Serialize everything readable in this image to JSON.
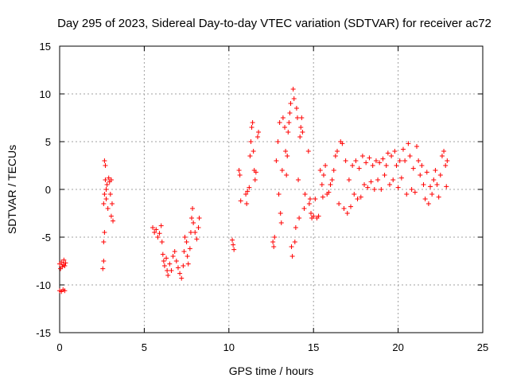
{
  "chart_data": {
    "type": "scatter",
    "title": "Day 295 of 2023, Sidereal Day-to-day VTEC variation (SDTVAR) for receiver ac72",
    "xlabel": "GPS time / hours",
    "ylabel": "SDTVAR / TECUs",
    "xlim": [
      0,
      25
    ],
    "ylim": [
      -15,
      15
    ],
    "x_ticks": [
      0,
      5,
      10,
      15,
      20,
      25
    ],
    "x_tick_labels": [
      "0",
      "5",
      "10",
      "15",
      "20",
      "25"
    ],
    "y_ticks": [
      -15,
      -10,
      -5,
      0,
      5,
      10,
      15
    ],
    "y_tick_labels": [
      "-15",
      "-10",
      "-5",
      "0",
      "5",
      "10",
      "15"
    ],
    "grid": true,
    "marker": "+",
    "series": [
      {
        "name": "ac72",
        "color": "#ff0000",
        "points": [
          [
            0.0,
            -7.8
          ],
          [
            0.05,
            -8.3
          ],
          [
            0.1,
            -7.6
          ],
          [
            0.15,
            -8.1
          ],
          [
            0.2,
            -7.9
          ],
          [
            0.25,
            -7.4
          ],
          [
            0.3,
            -8.0
          ],
          [
            0.35,
            -7.7
          ],
          [
            0.0,
            -10.6
          ],
          [
            0.1,
            -10.7
          ],
          [
            0.2,
            -10.5
          ],
          [
            0.3,
            -10.6
          ],
          [
            2.55,
            -8.3
          ],
          [
            2.6,
            -7.5
          ],
          [
            2.6,
            -5.5
          ],
          [
            2.65,
            -4.5
          ],
          [
            2.6,
            -1.5
          ],
          [
            2.65,
            -0.5
          ],
          [
            2.7,
            1.0
          ],
          [
            2.65,
            3.0
          ],
          [
            2.7,
            2.5
          ],
          [
            2.75,
            -1.0
          ],
          [
            2.8,
            0.5
          ],
          [
            2.85,
            -2.0
          ],
          [
            2.9,
            1.2
          ],
          [
            2.95,
            0.8
          ],
          [
            3.0,
            -0.5
          ],
          [
            3.05,
            1.0
          ],
          [
            3.1,
            -1.5
          ],
          [
            3.15,
            -3.3
          ],
          [
            3.05,
            -2.8
          ],
          [
            2.75,
            0.0
          ],
          [
            5.5,
            -4.0
          ],
          [
            5.6,
            -4.5
          ],
          [
            5.7,
            -4.2
          ],
          [
            5.8,
            -5.0
          ],
          [
            5.9,
            -4.6
          ],
          [
            6.0,
            -3.8
          ],
          [
            6.05,
            -5.5
          ],
          [
            6.1,
            -6.8
          ],
          [
            6.15,
            -7.5
          ],
          [
            6.2,
            -8.0
          ],
          [
            6.3,
            -7.2
          ],
          [
            6.35,
            -8.5
          ],
          [
            6.4,
            -9.0
          ],
          [
            6.5,
            -7.8
          ],
          [
            6.6,
            -8.5
          ],
          [
            6.7,
            -7.0
          ],
          [
            6.8,
            -6.5
          ],
          [
            6.9,
            -7.5
          ],
          [
            7.0,
            -8.2
          ],
          [
            7.1,
            -8.8
          ],
          [
            7.2,
            -9.3
          ],
          [
            7.3,
            -8.0
          ],
          [
            7.35,
            -6.5
          ],
          [
            7.4,
            -5.0
          ],
          [
            7.5,
            -5.5
          ],
          [
            7.55,
            -7.0
          ],
          [
            7.6,
            -7.8
          ],
          [
            7.7,
            -6.2
          ],
          [
            7.75,
            -4.5
          ],
          [
            7.8,
            -3.0
          ],
          [
            7.85,
            -2.0
          ],
          [
            7.9,
            -3.5
          ],
          [
            8.0,
            -4.5
          ],
          [
            8.1,
            -5.2
          ],
          [
            8.2,
            -4.0
          ],
          [
            8.25,
            -3.0
          ],
          [
            10.2,
            -5.3
          ],
          [
            10.25,
            -5.8
          ],
          [
            10.3,
            -6.3
          ],
          [
            10.6,
            2.0
          ],
          [
            10.65,
            1.5
          ],
          [
            10.7,
            -1.2
          ],
          [
            11.0,
            -0.5
          ],
          [
            11.05,
            -1.5
          ],
          [
            11.1,
            -0.2
          ],
          [
            11.2,
            0.2
          ],
          [
            11.25,
            3.5
          ],
          [
            11.3,
            5.0
          ],
          [
            11.35,
            6.5
          ],
          [
            11.4,
            7.0
          ],
          [
            11.45,
            4.0
          ],
          [
            11.5,
            2.0
          ],
          [
            11.55,
            1.0
          ],
          [
            11.6,
            1.8
          ],
          [
            11.7,
            5.5
          ],
          [
            11.75,
            6.0
          ],
          [
            12.6,
            -5.5
          ],
          [
            12.65,
            -6.0
          ],
          [
            12.7,
            -5.0
          ],
          [
            12.8,
            3.0
          ],
          [
            12.9,
            5.0
          ],
          [
            12.95,
            -0.5
          ],
          [
            13.0,
            7.0
          ],
          [
            13.05,
            -2.5
          ],
          [
            13.1,
            -3.5
          ],
          [
            13.15,
            2.0
          ],
          [
            13.2,
            7.5
          ],
          [
            13.3,
            6.5
          ],
          [
            13.35,
            4.0
          ],
          [
            13.4,
            1.5
          ],
          [
            13.45,
            3.5
          ],
          [
            13.5,
            6.0
          ],
          [
            13.55,
            7.0
          ],
          [
            13.6,
            8.0
          ],
          [
            13.65,
            9.0
          ],
          [
            13.7,
            -6.0
          ],
          [
            13.75,
            -7.0
          ],
          [
            13.8,
            10.5
          ],
          [
            13.85,
            9.5
          ],
          [
            13.9,
            -5.5
          ],
          [
            13.95,
            -4.0
          ],
          [
            14.0,
            8.5
          ],
          [
            14.05,
            7.5
          ],
          [
            14.1,
            1.0
          ],
          [
            14.15,
            -3.0
          ],
          [
            14.2,
            5.5
          ],
          [
            14.25,
            6.5
          ],
          [
            14.3,
            7.5
          ],
          [
            14.35,
            6.0
          ],
          [
            14.45,
            -2.0
          ],
          [
            14.5,
            -0.5
          ],
          [
            14.7,
            4.0
          ],
          [
            14.75,
            -1.5
          ],
          [
            14.8,
            -1.0
          ],
          [
            14.85,
            -2.5
          ],
          [
            14.9,
            -3.0
          ],
          [
            15.0,
            -2.8
          ],
          [
            15.1,
            -1.0
          ],
          [
            15.2,
            -3.0
          ],
          [
            15.3,
            -2.8
          ],
          [
            15.4,
            2.0
          ],
          [
            15.5,
            0.5
          ],
          [
            15.55,
            -0.8
          ],
          [
            15.6,
            1.5
          ],
          [
            15.7,
            2.5
          ],
          [
            15.8,
            -0.5
          ],
          [
            15.9,
            -0.3
          ],
          [
            16.0,
            0.5
          ],
          [
            16.1,
            1.0
          ],
          [
            16.2,
            2.0
          ],
          [
            16.3,
            3.5
          ],
          [
            16.4,
            4.0
          ],
          [
            16.5,
            -1.5
          ],
          [
            16.6,
            5.0
          ],
          [
            16.7,
            4.8
          ],
          [
            16.8,
            -2.0
          ],
          [
            16.9,
            3.0
          ],
          [
            17.0,
            -2.5
          ],
          [
            17.1,
            1.0
          ],
          [
            17.2,
            -1.8
          ],
          [
            17.3,
            2.5
          ],
          [
            17.4,
            -0.5
          ],
          [
            17.5,
            3.0
          ],
          [
            17.6,
            -1.0
          ],
          [
            17.7,
            2.2
          ],
          [
            17.8,
            -0.8
          ],
          [
            17.9,
            3.5
          ],
          [
            18.0,
            0.5
          ],
          [
            18.1,
            2.8
          ],
          [
            18.2,
            0.2
          ],
          [
            18.3,
            3.3
          ],
          [
            18.4,
            0.8
          ],
          [
            18.5,
            2.5
          ],
          [
            18.6,
            0.0
          ],
          [
            18.7,
            3.0
          ],
          [
            18.8,
            1.0
          ],
          [
            18.9,
            2.8
          ],
          [
            19.0,
            0.0
          ],
          [
            19.1,
            3.2
          ],
          [
            19.2,
            1.5
          ],
          [
            19.3,
            2.5
          ],
          [
            19.4,
            3.8
          ],
          [
            19.5,
            0.5
          ],
          [
            19.6,
            3.5
          ],
          [
            19.7,
            1.0
          ],
          [
            19.8,
            4.0
          ],
          [
            19.9,
            2.5
          ],
          [
            20.0,
            0.2
          ],
          [
            20.1,
            3.0
          ],
          [
            20.2,
            1.2
          ],
          [
            20.3,
            4.2
          ],
          [
            20.4,
            3.0
          ],
          [
            20.5,
            -0.5
          ],
          [
            20.6,
            4.8
          ],
          [
            20.7,
            3.5
          ],
          [
            20.8,
            0.0
          ],
          [
            20.9,
            2.2
          ],
          [
            21.0,
            -0.3
          ],
          [
            21.1,
            4.5
          ],
          [
            21.2,
            3.0
          ],
          [
            21.3,
            1.5
          ],
          [
            21.4,
            2.5
          ],
          [
            21.5,
            0.5
          ],
          [
            21.6,
            -1.0
          ],
          [
            21.7,
            1.8
          ],
          [
            21.8,
            -1.5
          ],
          [
            21.9,
            0.3
          ],
          [
            22.0,
            -0.5
          ],
          [
            22.1,
            1.0
          ],
          [
            22.2,
            2.0
          ],
          [
            22.3,
            0.5
          ],
          [
            22.4,
            -0.8
          ],
          [
            22.5,
            1.5
          ],
          [
            22.6,
            3.5
          ],
          [
            22.7,
            4.0
          ],
          [
            22.8,
            2.5
          ],
          [
            22.85,
            0.3
          ],
          [
            22.9,
            3.0
          ]
        ]
      }
    ]
  }
}
